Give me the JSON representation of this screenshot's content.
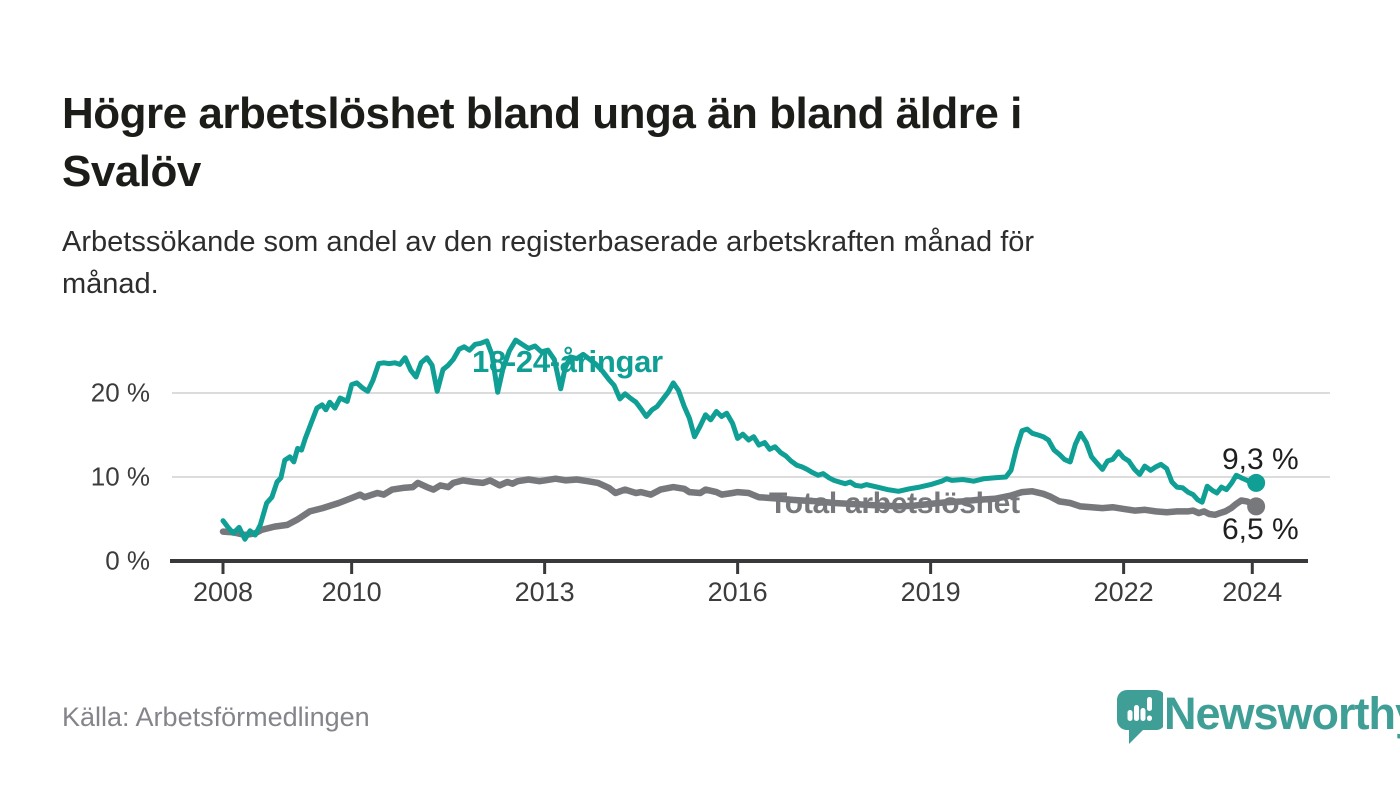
{
  "header": {
    "title": "Högre arbetslöshet bland unga än bland äldre i\nSvalöv",
    "subtitle": "Arbetssökande som andel av den registerbaserade arbetskraften månad för\nmånad."
  },
  "footer": {
    "source": "Källa: Arbetsförmedlingen",
    "brand": "Newsworthy"
  },
  "colors": {
    "young": "#0f9f94",
    "total": "#77787c",
    "brand_teal": "#3f9e96",
    "axis": "#39393b",
    "gridline": "#dcdcdc",
    "end_label": "#1f1f1f"
  },
  "chart_data": {
    "type": "line",
    "title": "Högre arbetslöshet bland unga än bland äldre i Svalöv",
    "subtitle": "Arbetssökande som andel av den registerbaserade arbetskraften månad för månad.",
    "xlabel": "",
    "ylabel": "",
    "grid": "horizontal",
    "legend": "inline-labels",
    "xlim": [
      2008,
      2024.4
    ],
    "ylim": [
      0,
      27
    ],
    "x_ticks": [
      2008,
      2010,
      2013,
      2016,
      2019,
      2022,
      2024
    ],
    "y_ticks": [
      {
        "value": 0,
        "label": "0 %"
      },
      {
        "value": 10,
        "label": "10 %"
      },
      {
        "value": 20,
        "label": "20 %"
      }
    ],
    "series": [
      {
        "name": "18-24-åringar",
        "color": "#0f9f94",
        "end_label": "9,3 %",
        "end_value": 9.3,
        "points": [
          [
            2008.0,
            4.8
          ],
          [
            2008.08,
            4.0
          ],
          [
            2008.16,
            3.3
          ],
          [
            2008.25,
            4.0
          ],
          [
            2008.34,
            2.6
          ],
          [
            2008.42,
            3.6
          ],
          [
            2008.5,
            3.1
          ],
          [
            2008.58,
            4.3
          ],
          [
            2008.68,
            6.9
          ],
          [
            2008.76,
            7.6
          ],
          [
            2008.84,
            9.4
          ],
          [
            2008.9,
            9.9
          ],
          [
            2008.96,
            12.0
          ],
          [
            2009.04,
            12.4
          ],
          [
            2009.1,
            11.8
          ],
          [
            2009.16,
            13.4
          ],
          [
            2009.22,
            13.2
          ],
          [
            2009.28,
            14.6
          ],
          [
            2009.35,
            16.0
          ],
          [
            2009.46,
            18.2
          ],
          [
            2009.54,
            18.6
          ],
          [
            2009.6,
            18.0
          ],
          [
            2009.66,
            18.9
          ],
          [
            2009.74,
            18.2
          ],
          [
            2009.82,
            19.4
          ],
          [
            2009.93,
            19.0
          ],
          [
            2010.0,
            21.0
          ],
          [
            2010.08,
            21.2
          ],
          [
            2010.17,
            20.6
          ],
          [
            2010.25,
            20.2
          ],
          [
            2010.33,
            21.5
          ],
          [
            2010.42,
            23.5
          ],
          [
            2010.5,
            23.6
          ],
          [
            2010.58,
            23.5
          ],
          [
            2010.67,
            23.6
          ],
          [
            2010.75,
            23.4
          ],
          [
            2010.83,
            24.2
          ],
          [
            2010.92,
            22.7
          ],
          [
            2011.0,
            21.9
          ],
          [
            2011.08,
            23.6
          ],
          [
            2011.17,
            24.2
          ],
          [
            2011.25,
            23.3
          ],
          [
            2011.33,
            20.2
          ],
          [
            2011.42,
            22.8
          ],
          [
            2011.5,
            23.3
          ],
          [
            2011.58,
            24.0
          ],
          [
            2011.67,
            25.2
          ],
          [
            2011.75,
            25.5
          ],
          [
            2011.83,
            25.1
          ],
          [
            2011.92,
            25.8
          ],
          [
            2012.0,
            25.9
          ],
          [
            2012.1,
            26.2
          ],
          [
            2012.18,
            24.6
          ],
          [
            2012.27,
            20.1
          ],
          [
            2012.35,
            22.8
          ],
          [
            2012.45,
            25.0
          ],
          [
            2012.55,
            26.3
          ],
          [
            2012.65,
            25.8
          ],
          [
            2012.75,
            25.3
          ],
          [
            2012.85,
            25.6
          ],
          [
            2012.95,
            24.9
          ],
          [
            2013.05,
            25.1
          ],
          [
            2013.15,
            24.0
          ],
          [
            2013.25,
            20.5
          ],
          [
            2013.32,
            23.0
          ],
          [
            2013.4,
            24.3
          ],
          [
            2013.5,
            24.1
          ],
          [
            2013.6,
            24.6
          ],
          [
            2013.7,
            24.0
          ],
          [
            2013.8,
            23.4
          ],
          [
            2013.9,
            22.6
          ],
          [
            2014.0,
            21.6
          ],
          [
            2014.08,
            20.9
          ],
          [
            2014.17,
            19.3
          ],
          [
            2014.25,
            19.9
          ],
          [
            2014.33,
            19.4
          ],
          [
            2014.42,
            18.9
          ],
          [
            2014.5,
            18.1
          ],
          [
            2014.58,
            17.2
          ],
          [
            2014.67,
            18.0
          ],
          [
            2014.75,
            18.4
          ],
          [
            2014.83,
            19.2
          ],
          [
            2014.92,
            20.1
          ],
          [
            2015.0,
            21.2
          ],
          [
            2015.08,
            20.3
          ],
          [
            2015.17,
            18.4
          ],
          [
            2015.25,
            17.0
          ],
          [
            2015.33,
            14.8
          ],
          [
            2015.42,
            16.1
          ],
          [
            2015.5,
            17.4
          ],
          [
            2015.58,
            16.8
          ],
          [
            2015.67,
            17.8
          ],
          [
            2015.75,
            17.2
          ],
          [
            2015.83,
            17.6
          ],
          [
            2015.92,
            16.4
          ],
          [
            2016.0,
            14.6
          ],
          [
            2016.08,
            15.1
          ],
          [
            2016.17,
            14.4
          ],
          [
            2016.25,
            14.8
          ],
          [
            2016.33,
            13.8
          ],
          [
            2016.42,
            14.1
          ],
          [
            2016.5,
            13.3
          ],
          [
            2016.58,
            13.6
          ],
          [
            2016.67,
            12.9
          ],
          [
            2016.75,
            12.5
          ],
          [
            2016.83,
            11.9
          ],
          [
            2016.92,
            11.4
          ],
          [
            2017.0,
            11.2
          ],
          [
            2017.08,
            10.9
          ],
          [
            2017.17,
            10.5
          ],
          [
            2017.25,
            10.2
          ],
          [
            2017.33,
            10.4
          ],
          [
            2017.42,
            9.9
          ],
          [
            2017.5,
            9.6
          ],
          [
            2017.58,
            9.4
          ],
          [
            2017.67,
            9.2
          ],
          [
            2017.75,
            9.4
          ],
          [
            2017.83,
            9.0
          ],
          [
            2017.92,
            8.9
          ],
          [
            2018.0,
            9.1
          ],
          [
            2018.17,
            8.8
          ],
          [
            2018.33,
            8.5
          ],
          [
            2018.5,
            8.3
          ],
          [
            2018.67,
            8.6
          ],
          [
            2018.83,
            8.8
          ],
          [
            2019.0,
            9.1
          ],
          [
            2019.17,
            9.5
          ],
          [
            2019.25,
            9.8
          ],
          [
            2019.33,
            9.6
          ],
          [
            2019.5,
            9.7
          ],
          [
            2019.67,
            9.5
          ],
          [
            2019.83,
            9.8
          ],
          [
            2020.0,
            9.9
          ],
          [
            2020.17,
            10.0
          ],
          [
            2020.25,
            10.8
          ],
          [
            2020.33,
            13.3
          ],
          [
            2020.42,
            15.5
          ],
          [
            2020.5,
            15.7
          ],
          [
            2020.58,
            15.2
          ],
          [
            2020.67,
            15.0
          ],
          [
            2020.75,
            14.8
          ],
          [
            2020.83,
            14.4
          ],
          [
            2020.92,
            13.2
          ],
          [
            2021.0,
            12.7
          ],
          [
            2021.08,
            12.1
          ],
          [
            2021.17,
            11.8
          ],
          [
            2021.25,
            13.9
          ],
          [
            2021.33,
            15.2
          ],
          [
            2021.42,
            14.1
          ],
          [
            2021.5,
            12.4
          ],
          [
            2021.58,
            11.7
          ],
          [
            2021.67,
            10.9
          ],
          [
            2021.75,
            11.9
          ],
          [
            2021.83,
            12.1
          ],
          [
            2021.92,
            13.0
          ],
          [
            2022.0,
            12.3
          ],
          [
            2022.08,
            11.9
          ],
          [
            2022.17,
            10.9
          ],
          [
            2022.25,
            10.3
          ],
          [
            2022.33,
            11.3
          ],
          [
            2022.42,
            10.8
          ],
          [
            2022.5,
            11.2
          ],
          [
            2022.58,
            11.5
          ],
          [
            2022.67,
            11.0
          ],
          [
            2022.75,
            9.4
          ],
          [
            2022.83,
            8.8
          ],
          [
            2022.92,
            8.7
          ],
          [
            2023.0,
            8.2
          ],
          [
            2023.08,
            7.9
          ],
          [
            2023.15,
            7.3
          ],
          [
            2023.22,
            7.0
          ],
          [
            2023.3,
            8.9
          ],
          [
            2023.38,
            8.4
          ],
          [
            2023.45,
            8.1
          ],
          [
            2023.52,
            8.8
          ],
          [
            2023.6,
            8.5
          ],
          [
            2023.68,
            9.3
          ],
          [
            2023.75,
            10.2
          ],
          [
            2023.83,
            9.9
          ],
          [
            2023.92,
            9.6
          ],
          [
            2024.0,
            9.2
          ],
          [
            2024.06,
            9.3
          ]
        ]
      },
      {
        "name": "Total arbetslöshet",
        "color": "#77787c",
        "end_label": "6,5 %",
        "end_value": 6.5,
        "points": [
          [
            2008.0,
            3.5
          ],
          [
            2008.17,
            3.4
          ],
          [
            2008.34,
            3.1
          ],
          [
            2008.5,
            3.3
          ],
          [
            2008.6,
            3.7
          ],
          [
            2008.8,
            4.1
          ],
          [
            2009.0,
            4.3
          ],
          [
            2009.15,
            4.9
          ],
          [
            2009.35,
            5.9
          ],
          [
            2009.55,
            6.3
          ],
          [
            2009.8,
            6.9
          ],
          [
            2010.0,
            7.5
          ],
          [
            2010.13,
            7.9
          ],
          [
            2010.2,
            7.6
          ],
          [
            2010.4,
            8.1
          ],
          [
            2010.5,
            7.9
          ],
          [
            2010.63,
            8.5
          ],
          [
            2010.8,
            8.7
          ],
          [
            2010.95,
            8.8
          ],
          [
            2011.03,
            9.3
          ],
          [
            2011.17,
            8.8
          ],
          [
            2011.27,
            8.5
          ],
          [
            2011.38,
            9.0
          ],
          [
            2011.5,
            8.8
          ],
          [
            2011.58,
            9.3
          ],
          [
            2011.73,
            9.6
          ],
          [
            2011.9,
            9.4
          ],
          [
            2012.04,
            9.3
          ],
          [
            2012.15,
            9.6
          ],
          [
            2012.3,
            9.0
          ],
          [
            2012.42,
            9.4
          ],
          [
            2012.5,
            9.2
          ],
          [
            2012.58,
            9.5
          ],
          [
            2012.75,
            9.7
          ],
          [
            2012.92,
            9.5
          ],
          [
            2013.0,
            9.6
          ],
          [
            2013.17,
            9.8
          ],
          [
            2013.33,
            9.6
          ],
          [
            2013.5,
            9.7
          ],
          [
            2013.67,
            9.5
          ],
          [
            2013.83,
            9.3
          ],
          [
            2014.0,
            8.7
          ],
          [
            2014.1,
            8.1
          ],
          [
            2014.25,
            8.5
          ],
          [
            2014.42,
            8.1
          ],
          [
            2014.5,
            8.2
          ],
          [
            2014.65,
            7.9
          ],
          [
            2014.8,
            8.5
          ],
          [
            2015.0,
            8.8
          ],
          [
            2015.17,
            8.6
          ],
          [
            2015.25,
            8.2
          ],
          [
            2015.42,
            8.1
          ],
          [
            2015.5,
            8.5
          ],
          [
            2015.67,
            8.2
          ],
          [
            2015.75,
            7.9
          ],
          [
            2015.92,
            8.1
          ],
          [
            2016.0,
            8.2
          ],
          [
            2016.17,
            8.1
          ],
          [
            2016.33,
            7.6
          ],
          [
            2016.5,
            7.5
          ],
          [
            2016.67,
            7.4
          ],
          [
            2016.83,
            7.3
          ],
          [
            2017.0,
            7.2
          ],
          [
            2017.25,
            7.1
          ],
          [
            2017.5,
            6.9
          ],
          [
            2017.75,
            6.8
          ],
          [
            2018.0,
            6.7
          ],
          [
            2018.25,
            6.6
          ],
          [
            2018.5,
            6.5
          ],
          [
            2018.75,
            6.6
          ],
          [
            2019.0,
            6.8
          ],
          [
            2019.25,
            7.0
          ],
          [
            2019.5,
            7.1
          ],
          [
            2019.75,
            7.3
          ],
          [
            2020.0,
            7.4
          ],
          [
            2020.25,
            7.8
          ],
          [
            2020.42,
            8.2
          ],
          [
            2020.58,
            8.3
          ],
          [
            2020.75,
            8.0
          ],
          [
            2020.85,
            7.7
          ],
          [
            2021.0,
            7.1
          ],
          [
            2021.17,
            6.9
          ],
          [
            2021.33,
            6.5
          ],
          [
            2021.5,
            6.4
          ],
          [
            2021.67,
            6.3
          ],
          [
            2021.83,
            6.4
          ],
          [
            2022.0,
            6.2
          ],
          [
            2022.17,
            6.0
          ],
          [
            2022.33,
            6.1
          ],
          [
            2022.5,
            5.9
          ],
          [
            2022.67,
            5.8
          ],
          [
            2022.83,
            5.9
          ],
          [
            2023.0,
            5.9
          ],
          [
            2023.08,
            6.0
          ],
          [
            2023.17,
            5.7
          ],
          [
            2023.25,
            5.9
          ],
          [
            2023.33,
            5.6
          ],
          [
            2023.42,
            5.5
          ],
          [
            2023.5,
            5.7
          ],
          [
            2023.58,
            5.9
          ],
          [
            2023.67,
            6.3
          ],
          [
            2023.75,
            6.8
          ],
          [
            2023.83,
            7.2
          ],
          [
            2023.92,
            7.1
          ],
          [
            2024.0,
            6.8
          ],
          [
            2024.06,
            6.5
          ]
        ]
      }
    ]
  }
}
